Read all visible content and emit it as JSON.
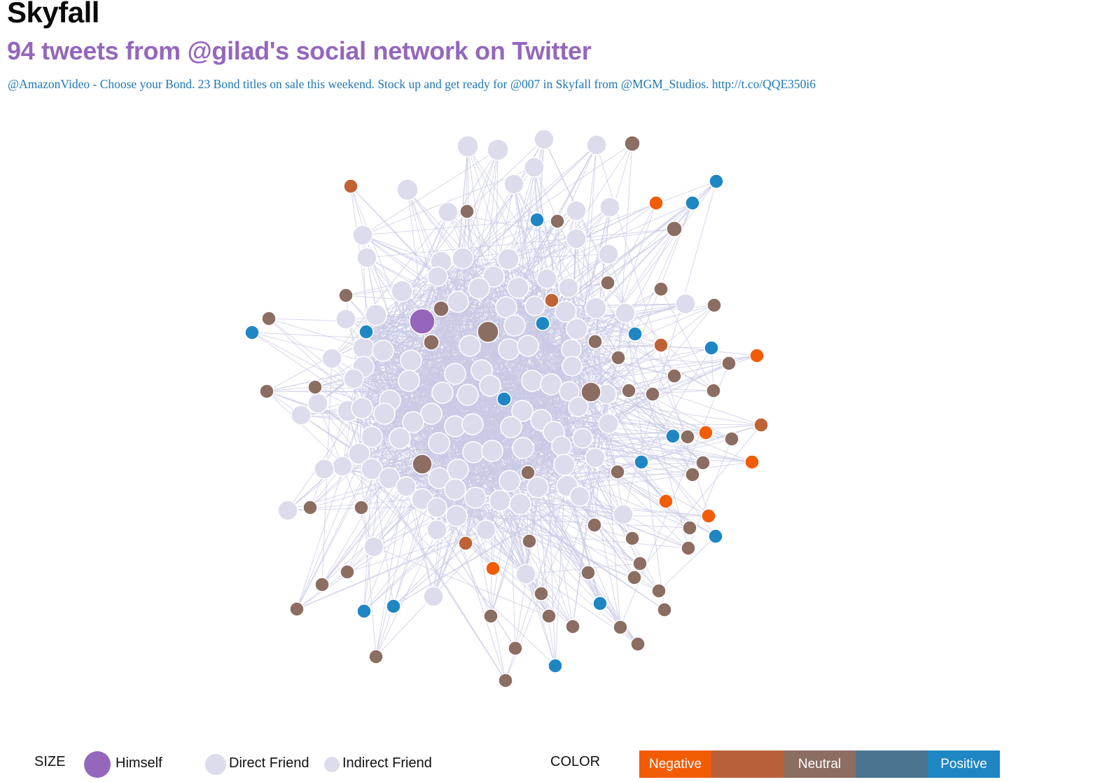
{
  "header": {
    "title": "Skyfall",
    "subtitle": "94 tweets from @gilad's social network on Twitter",
    "tweet": "@AmazonVideo - Choose your Bond. 23 Bond titles on sale this weekend. Stock up and get ready for @007 in Skyfall from @MGM_Studios. http://t.co/QQE350i6"
  },
  "legend": {
    "size_label": "SIZE",
    "sizes": [
      {
        "label": "Himself",
        "color": "#9467bd"
      },
      {
        "label": "Direct Friend",
        "color": "#dcdcec"
      },
      {
        "label": "Indirect Friend",
        "color": "#dcdcec"
      }
    ],
    "color_label": "COLOR",
    "colors": [
      {
        "label": "Negative",
        "color": "#f25c05"
      },
      {
        "label": "",
        "color": "#b8603a"
      },
      {
        "label": "Neutral",
        "color": "#8c6d62"
      },
      {
        "label": "",
        "color": "#4a7590"
      },
      {
        "label": "Positive",
        "color": "#1f86c4"
      }
    ]
  },
  "palette": {
    "himself": "#9467bd",
    "friend": "#dcdcec",
    "neutral": "#8c6d62",
    "negative": "#f25c05",
    "slightly_negative": "#bf6236",
    "positive": "#1f86c4",
    "edge": "#c9c9e6"
  }
}
